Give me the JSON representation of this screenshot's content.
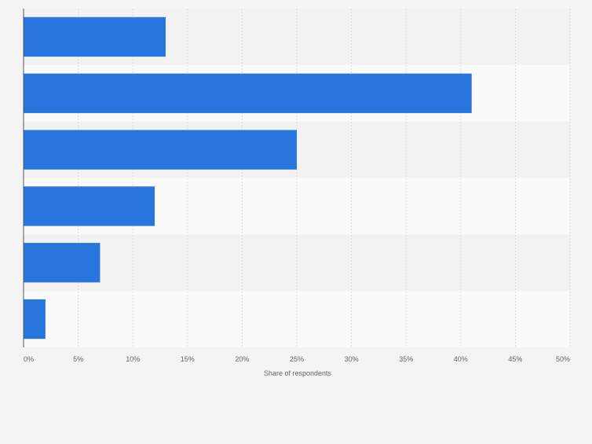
{
  "chart_data": {
    "type": "bar",
    "orientation": "horizontal",
    "categories": [
      "",
      "",
      "",
      "",
      "",
      ""
    ],
    "values": [
      13,
      41,
      25,
      12,
      7,
      2
    ],
    "xlabel": "Share of respondents",
    "xlim": [
      0,
      50
    ],
    "ticks": [
      0,
      5,
      10,
      15,
      20,
      25,
      30,
      35,
      40,
      45,
      50
    ],
    "tick_labels": [
      "0%",
      "5%",
      "10%",
      "15%",
      "20%",
      "25%",
      "30%",
      "35%",
      "40%",
      "45%",
      "50%"
    ],
    "grid": true,
    "bar_color": "#2775dd",
    "band_colors": [
      "#f2f2f2",
      "#fafafa"
    ],
    "gridline_color": "#dcdcdc",
    "axis_color": "#555555",
    "label_color": "#666666"
  }
}
